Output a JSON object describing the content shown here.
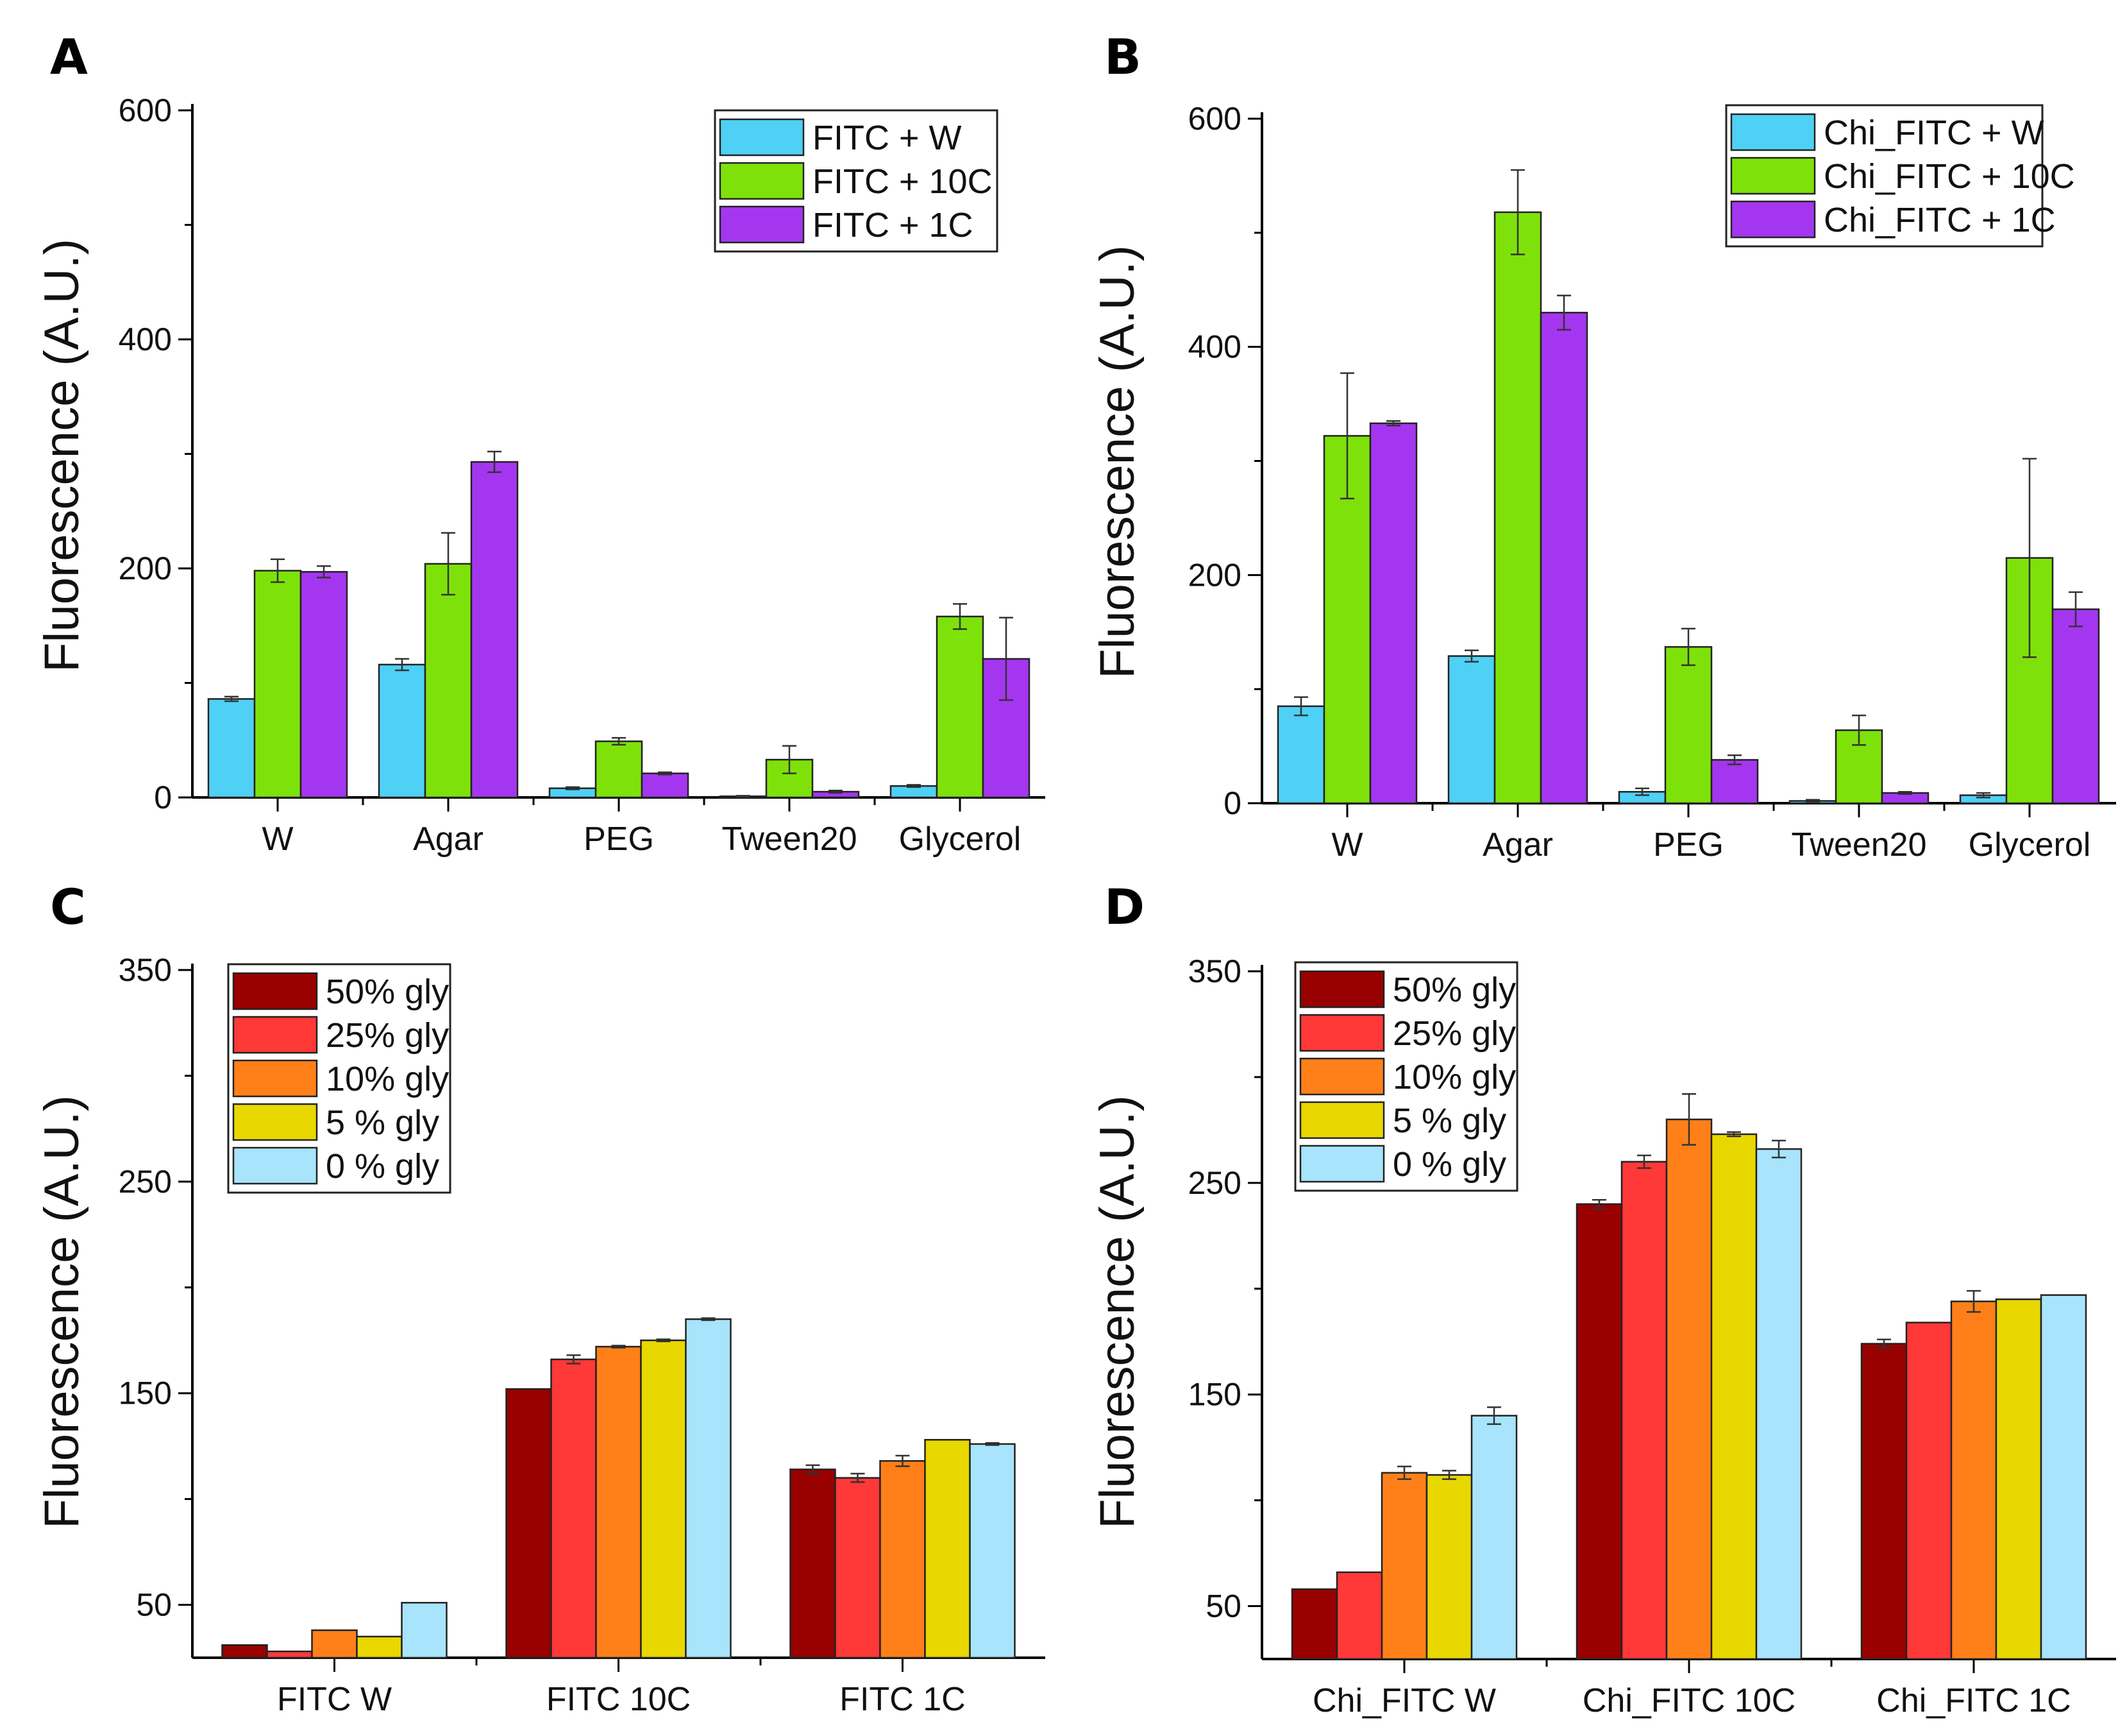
{
  "chart_data": [
    {
      "panel": "A",
      "type": "bar",
      "ylabel": "Fluorescence (A.U.)",
      "xlabel": "",
      "ylim": [
        0,
        600
      ],
      "yticks": [
        0,
        200,
        400,
        600
      ],
      "legend_position": "top-right",
      "categories": [
        "W",
        "Agar",
        "PEG",
        "Tween20",
        "Glycerol"
      ],
      "series": [
        {
          "name": "FITC + W",
          "color": "#4fd0f5",
          "values": [
            86,
            116,
            8,
            1,
            10
          ],
          "errors": [
            2,
            5,
            1,
            0.5,
            1
          ]
        },
        {
          "name": "FITC + 10C",
          "color": "#7ee20a",
          "values": [
            198,
            204,
            49,
            33,
            158
          ],
          "errors": [
            10,
            27,
            3,
            12,
            11
          ]
        },
        {
          "name": "FITC + 1C",
          "color": "#a536f0",
          "values": [
            197,
            293,
            21,
            5,
            121
          ],
          "errors": [
            5,
            9,
            1,
            1,
            36
          ]
        }
      ]
    },
    {
      "panel": "B",
      "type": "bar",
      "ylabel": "Fluorescence (A.U.)",
      "xlabel": "",
      "ylim": [
        0,
        600
      ],
      "yticks": [
        0,
        200,
        400,
        600
      ],
      "legend_position": "top-right",
      "categories": [
        "W",
        "Agar",
        "PEG",
        "Tween20",
        "Glycerol"
      ],
      "series": [
        {
          "name": "Chi_FITC + W",
          "color": "#4fd0f5",
          "values": [
            85,
            129,
            10,
            2,
            7
          ],
          "errors": [
            8,
            5,
            3,
            1,
            2
          ]
        },
        {
          "name": "Chi_FITC + 10C",
          "color": "#7ee20a",
          "values": [
            322,
            518,
            137,
            64,
            215
          ],
          "errors": [
            55,
            37,
            16,
            13,
            87
          ]
        },
        {
          "name": "Chi_FITC + 1C",
          "color": "#a536f0",
          "values": [
            333,
            430,
            38,
            9,
            170
          ],
          "errors": [
            2,
            15,
            4,
            1,
            15
          ]
        }
      ]
    },
    {
      "panel": "C",
      "type": "bar",
      "ylabel": "Fluorescence (A.U.)",
      "xlabel": "",
      "ylim": [
        25,
        350
      ],
      "yticks": [
        50,
        150,
        250,
        350
      ],
      "legend_position": "top-left",
      "categories": [
        "FITC W",
        "FITC 10C",
        "FITC 1C"
      ],
      "series": [
        {
          "name": "50% gly",
          "color": "#990000",
          "values": [
            31,
            152,
            114
          ],
          "errors": [
            0,
            0,
            2
          ]
        },
        {
          "name": "25% gly",
          "color": "#ff3838",
          "values": [
            28,
            166,
            110
          ],
          "errors": [
            0,
            2,
            2
          ]
        },
        {
          "name": "10% gly",
          "color": "#ff8019",
          "values": [
            38,
            172,
            118
          ],
          "errors": [
            0,
            0.5,
            2.5
          ]
        },
        {
          "name": "5 % gly",
          "color": "#e8d800",
          "values": [
            35,
            175,
            128
          ],
          "errors": [
            0,
            0.5,
            0
          ]
        },
        {
          "name": "0 % gly",
          "color": "#a8e4fb",
          "values": [
            51,
            185,
            126
          ],
          "errors": [
            0,
            0.5,
            0.5
          ]
        }
      ]
    },
    {
      "panel": "D",
      "type": "bar",
      "ylabel": "Fluorescence (A.U.)",
      "xlabel": "",
      "ylim": [
        25,
        350
      ],
      "yticks": [
        50,
        150,
        250,
        350
      ],
      "legend_position": "top-left",
      "categories": [
        "Chi_FITC W",
        "Chi_FITC 10C",
        "Chi_FITC 1C"
      ],
      "series": [
        {
          "name": "50% gly",
          "color": "#990000",
          "values": [
            58,
            240,
            174
          ],
          "errors": [
            0,
            2,
            2
          ]
        },
        {
          "name": "25% gly",
          "color": "#ff3838",
          "values": [
            66,
            260,
            184
          ],
          "errors": [
            0,
            3,
            0
          ]
        },
        {
          "name": "10% gly",
          "color": "#ff8019",
          "values": [
            113,
            280,
            194
          ],
          "errors": [
            3,
            12,
            5
          ]
        },
        {
          "name": "5 % gly",
          "color": "#e8d800",
          "values": [
            112,
            273,
            195
          ],
          "errors": [
            2,
            1,
            0
          ]
        },
        {
          "name": "0 % gly",
          "color": "#a8e4fb",
          "values": [
            140,
            266,
            197
          ],
          "errors": [
            4,
            4,
            0
          ]
        }
      ]
    }
  ]
}
